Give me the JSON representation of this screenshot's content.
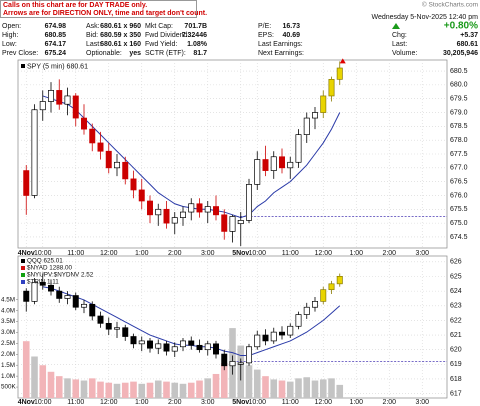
{
  "header": {
    "notice": [
      "Calls on this chart are for DAY TRADE only.",
      "Arrows are for DIRECTION ONLY, time and target don't count."
    ],
    "source": "© StockCharts.com",
    "datetime": "Wednesday  5-Nov-2025 12:40 pm",
    "quote": [
      [
        {
          "label": "Open:",
          "value": "674.98"
        },
        {
          "label": "Ask:",
          "value": "680.61 x 960"
        },
        {
          "label": "Mkt Cap:",
          "value": "701.7B"
        },
        {
          "label": "P/E:",
          "value": "16.73"
        }
      ],
      [
        {
          "label": "High:",
          "value": "680.85"
        },
        {
          "label": "Bid:",
          "value": "680.59 x 350"
        },
        {
          "label": "Fwd Dividend:",
          "value": "7.32446"
        },
        {
          "label": "EPS:",
          "value": "40.69"
        }
      ],
      [
        {
          "label": "Low:",
          "value": "674.17"
        },
        {
          "label": "Last:",
          "value": "680.61 x 160"
        },
        {
          "label": "Fwd Yield:",
          "value": "1.08%"
        },
        {
          "label": "Last Earnings:"
        }
      ],
      [
        {
          "label": "Prev Close:",
          "value": "675.24"
        },
        {
          "label": "Optionable:",
          "value": "yes"
        },
        {
          "label": "SCTR (ETF):",
          "value": "81.7"
        },
        {
          "label": "Next Earnings:"
        }
      ]
    ],
    "change_pct": "+0.80%",
    "right": [
      {
        "label": "Chg:",
        "value": "+5.37"
      },
      {
        "label": "Last:",
        "value": "680.61"
      },
      {
        "label": "Volume:",
        "value": "30,205,946"
      }
    ]
  },
  "chart_data": [
    {
      "type": "candlestick",
      "legend": "SPY (5 min) 680.61",
      "legend_color": "#000000",
      "x": [
        0,
        1,
        2,
        3,
        4,
        5,
        6,
        7,
        8,
        9,
        10,
        11,
        12,
        13,
        14,
        15,
        16,
        17,
        18,
        19,
        20,
        21,
        22,
        23,
        24,
        25,
        26,
        27,
        28,
        29,
        30,
        31,
        32,
        33,
        34,
        35,
        36,
        37,
        38
      ],
      "open": [
        676.9,
        676.0,
        679.1,
        679.4,
        679.8,
        679.3,
        679.6,
        678.8,
        678.4,
        677.9,
        677.6,
        677.0,
        677.2,
        676.6,
        676.2,
        675.8,
        675.3,
        675.5,
        675.0,
        675.2,
        675.4,
        675.7,
        675.4,
        675.6,
        675.3,
        674.7,
        674.98,
        675.1,
        676.4,
        677.3,
        676.9,
        677.4,
        677.0,
        677.2,
        678.2,
        678.8,
        679.0,
        679.6,
        680.2
      ],
      "high": [
        677.1,
        679.3,
        679.8,
        680.1,
        680.2,
        679.9,
        679.7,
        679.3,
        678.6,
        678.3,
        677.9,
        677.5,
        677.4,
        676.9,
        676.6,
        676.0,
        675.7,
        675.8,
        675.4,
        675.6,
        675.9,
        675.9,
        675.8,
        676.0,
        675.5,
        675.3,
        675.4,
        676.6,
        677.6,
        677.8,
        677.6,
        677.7,
        677.4,
        678.4,
        679.0,
        679.2,
        679.8,
        680.3,
        680.85
      ],
      "low": [
        675.3,
        675.9,
        678.7,
        679.0,
        679.1,
        678.9,
        678.5,
        678.2,
        677.6,
        677.3,
        676.8,
        676.7,
        676.4,
        675.9,
        675.5,
        675.0,
        674.9,
        674.8,
        674.6,
        674.9,
        675.1,
        675.2,
        675.0,
        675.1,
        674.4,
        674.3,
        674.17,
        675.0,
        676.2,
        676.7,
        676.6,
        676.8,
        676.6,
        677.0,
        677.9,
        678.4,
        678.8,
        679.4,
        680.0
      ],
      "close": [
        676.0,
        679.1,
        679.4,
        679.8,
        679.3,
        679.6,
        678.8,
        678.4,
        677.9,
        677.6,
        677.0,
        677.2,
        676.6,
        676.2,
        675.8,
        675.3,
        675.5,
        675.0,
        675.2,
        675.4,
        675.7,
        675.4,
        675.6,
        675.3,
        674.7,
        675.24,
        675.1,
        676.4,
        677.3,
        676.9,
        677.4,
        677.0,
        677.2,
        678.2,
        678.8,
        679.0,
        679.6,
        680.2,
        680.61
      ],
      "up_color": "#000000",
      "down_color": "#cc0000",
      "highlight_from": 36,
      "highlight_color": "#e8d400",
      "end_marker_color": "#e00000",
      "overlays": [
        {
          "color": "#2a3aa8",
          "values": [
            null,
            null,
            679.6,
            679.5,
            679.4,
            679.3,
            679.1,
            678.8,
            678.5,
            678.2,
            677.9,
            677.6,
            677.3,
            677.0,
            676.7,
            676.4,
            676.1,
            675.9,
            675.7,
            675.6,
            675.55,
            675.5,
            675.5,
            675.45,
            675.4,
            675.3,
            675.2,
            675.3,
            675.6,
            675.8,
            676.1,
            676.3,
            676.5,
            676.8,
            677.1,
            677.5,
            677.9,
            678.4,
            679.0
          ]
        }
      ],
      "reference_line": 675.24,
      "reference_color": "#4b3bb5",
      "xlim": [
        -1,
        51
      ],
      "xticks": [
        {
          "value": 0,
          "label": "4Nov"
        },
        {
          "value": 2,
          "label": "10:00"
        },
        {
          "value": 6,
          "label": "11:00"
        },
        {
          "value": 10,
          "label": "12:00"
        },
        {
          "value": 14,
          "label": "1:00"
        },
        {
          "value": 18,
          "label": "2:00"
        },
        {
          "value": 22,
          "label": "3:00"
        },
        {
          "value": 26,
          "label": "5Nov"
        },
        {
          "value": 28,
          "label": "10:00"
        },
        {
          "value": 32,
          "label": "11:00"
        },
        {
          "value": 36,
          "label": "12:00"
        },
        {
          "value": 40,
          "label": "1:00"
        },
        {
          "value": 44,
          "label": "2:00"
        },
        {
          "value": 48,
          "label": "3:00"
        }
      ],
      "ylim": [
        674.1,
        680.9
      ],
      "yticks": [
        674.5,
        {
          "value": 675,
          "label": "675.0"
        },
        675.5,
        {
          "value": 676,
          "label": "676.0"
        },
        676.5,
        {
          "value": 677,
          "label": "677.0"
        },
        677.5,
        {
          "value": 678,
          "label": "678.0"
        },
        678.5,
        {
          "value": 679,
          "label": "679.0"
        },
        679.5,
        {
          "value": 680,
          "label": "680.0"
        },
        680.5
      ],
      "grid": true
    },
    {
      "type": "candlestick",
      "legends": [
        {
          "name": "QQQ 625.01",
          "color": "#000000"
        },
        {
          "name": "$NYAD 1288.00",
          "color": "#d01010"
        },
        {
          "name": "$NYUPV:$NYDNV 2.52",
          "color": "#10a010"
        },
        {
          "name": "$TRIN 1.11",
          "color": "#3040c0"
        }
      ],
      "x": [
        0,
        1,
        2,
        3,
        4,
        5,
        6,
        7,
        8,
        9,
        10,
        11,
        12,
        13,
        14,
        15,
        16,
        17,
        18,
        19,
        20,
        21,
        22,
        23,
        24,
        25,
        26,
        27,
        28,
        29,
        30,
        31,
        32,
        33,
        34,
        35,
        36,
        37,
        38
      ],
      "open": [
        624.0,
        623.3,
        624.6,
        624.4,
        624.0,
        623.5,
        623.7,
        622.9,
        623.1,
        622.3,
        621.8,
        621.4,
        621.5,
        620.9,
        620.4,
        620.6,
        620.1,
        620.4,
        619.9,
        620.2,
        620.6,
        620.3,
        620.0,
        620.4,
        619.7,
        618.9,
        619.0,
        619.1,
        620.2,
        621.0,
        620.6,
        621.2,
        621.0,
        621.6,
        622.4,
        622.9,
        623.3,
        624.1,
        624.5
      ],
      "high": [
        624.2,
        624.9,
        625.2,
        624.8,
        624.3,
        624.0,
        623.9,
        623.4,
        623.3,
        622.6,
        622.2,
        621.9,
        621.7,
        621.1,
        620.9,
        620.8,
        620.7,
        620.6,
        620.5,
        620.8,
        620.9,
        620.7,
        620.6,
        620.6,
        620.0,
        619.6,
        619.4,
        620.4,
        621.3,
        621.4,
        621.5,
        621.6,
        621.8,
        622.6,
        623.2,
        623.6,
        624.3,
        624.7,
        625.2
      ],
      "low": [
        622.6,
        623.1,
        624.1,
        623.7,
        623.2,
        623.1,
        622.7,
        622.5,
        622.0,
        621.5,
        621.0,
        620.8,
        620.6,
        620.1,
        619.9,
        619.8,
        619.7,
        619.6,
        619.5,
        619.9,
        620.0,
        619.8,
        619.6,
        619.4,
        618.6,
        618.3,
        617.9,
        618.9,
        620.0,
        620.3,
        620.4,
        620.7,
        620.8,
        621.4,
        622.1,
        622.6,
        623.1,
        623.8,
        624.3
      ],
      "close": [
        623.3,
        624.6,
        624.4,
        624.0,
        623.5,
        623.7,
        622.9,
        623.1,
        622.3,
        621.8,
        621.4,
        621.5,
        620.9,
        620.4,
        620.6,
        620.1,
        620.4,
        619.9,
        620.2,
        620.6,
        620.3,
        620.0,
        620.4,
        619.7,
        618.9,
        619.2,
        619.1,
        620.2,
        621.0,
        620.6,
        621.2,
        621.0,
        621.6,
        622.4,
        622.9,
        623.3,
        624.1,
        624.5,
        625.01
      ],
      "up_color": "#000000",
      "down_color": "#000000",
      "highlight_from": 36,
      "highlight_color": "#e8d400",
      "overlays": [
        {
          "color": "#2a3aa8",
          "values": [
            null,
            null,
            624.3,
            624.2,
            624.0,
            623.8,
            623.6,
            623.4,
            623.1,
            622.8,
            622.5,
            622.2,
            621.9,
            621.6,
            621.3,
            621.0,
            620.8,
            620.6,
            620.4,
            620.3,
            620.3,
            620.2,
            620.2,
            620.1,
            619.9,
            619.8,
            619.6,
            619.6,
            619.8,
            620.0,
            620.2,
            620.4,
            620.6,
            620.9,
            621.2,
            621.6,
            622.0,
            622.5,
            623.0
          ]
        }
      ],
      "reference_line": 619.2,
      "reference_color": "#4b3bb5",
      "volume": {
        "values": [
          2600000,
          1900000,
          1500000,
          1200000,
          1000000,
          900000,
          850000,
          800000,
          900000,
          750000,
          700000,
          650000,
          700000,
          750000,
          650000,
          700000,
          800000,
          750000,
          700000,
          650000,
          700000,
          800000,
          900000,
          1100000,
          1600000,
          3200000,
          2400000,
          1500000,
          1300000,
          1000000,
          850000,
          800000,
          750000,
          900000,
          950000,
          800000,
          850000,
          900000,
          600000
        ],
        "up_color": "#c4c4c4",
        "down_color": "#f2b4b8",
        "ylim": [
          0,
          6500000
        ],
        "yticks": [
          {
            "value": 500000,
            "label": "500K"
          },
          {
            "value": 1000000,
            "label": "1.0M"
          },
          {
            "value": 1500000,
            "label": "1.5M"
          },
          {
            "value": 2000000,
            "label": "2.0M"
          },
          {
            "value": 2500000,
            "label": "2.5M"
          },
          {
            "value": 3000000,
            "label": "3.0M"
          },
          {
            "value": 3500000,
            "label": "3.5M"
          },
          {
            "value": 4000000,
            "label": "4.0M"
          },
          {
            "value": 4500000,
            "label": "4.5M"
          }
        ]
      },
      "xlim": [
        -1,
        51
      ],
      "xticks": [
        {
          "value": 0,
          "label": "4Nov"
        },
        {
          "value": 2,
          "label": "10:00"
        },
        {
          "value": 6,
          "label": "11:00"
        },
        {
          "value": 10,
          "label": "12:00"
        },
        {
          "value": 14,
          "label": "1:00"
        },
        {
          "value": 18,
          "label": "2:00"
        },
        {
          "value": 22,
          "label": "3:00"
        },
        {
          "value": 26,
          "label": "5Nov"
        },
        {
          "value": 28,
          "label": "10:00"
        },
        {
          "value": 32,
          "label": "11:00"
        },
        {
          "value": 36,
          "label": "12:00"
        },
        {
          "value": 40,
          "label": "1:00"
        },
        {
          "value": 44,
          "label": "2:00"
        },
        {
          "value": 48,
          "label": "3:00"
        }
      ],
      "ylim": [
        616.7,
        626.4
      ],
      "yticks": [
        617,
        618,
        619,
        620,
        621,
        622,
        623,
        624,
        625,
        626
      ],
      "grid": true
    }
  ]
}
